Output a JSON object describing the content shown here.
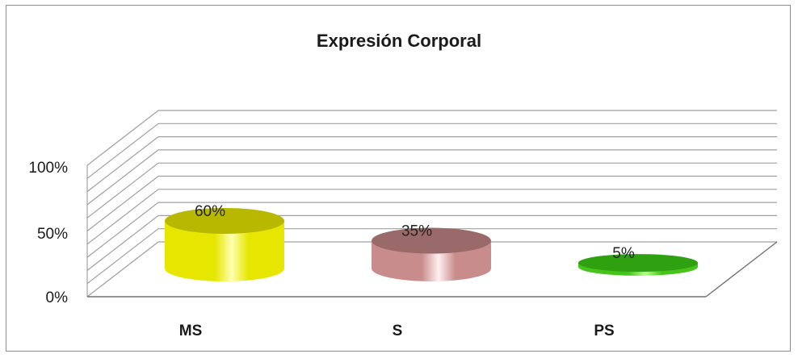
{
  "chart_data": {
    "type": "bar",
    "title": "Expresión Corporal",
    "categories": [
      "MS",
      "S",
      "PS"
    ],
    "values": [
      60,
      35,
      5
    ],
    "data_labels": [
      "60%",
      "35%",
      "5%"
    ],
    "yticks": [
      "0%",
      "50%",
      "100%"
    ],
    "ylim": [
      0,
      100
    ],
    "grid": true,
    "legend": "none",
    "colors": [
      "#e6e600",
      "#c98c8c",
      "#46c41a"
    ],
    "highlight_colors": [
      "#ffffb0",
      "#fff0f0",
      "#b8ff8c"
    ],
    "top_colors": [
      "#b8b800",
      "#9a6a6a",
      "#2fa010"
    ]
  }
}
